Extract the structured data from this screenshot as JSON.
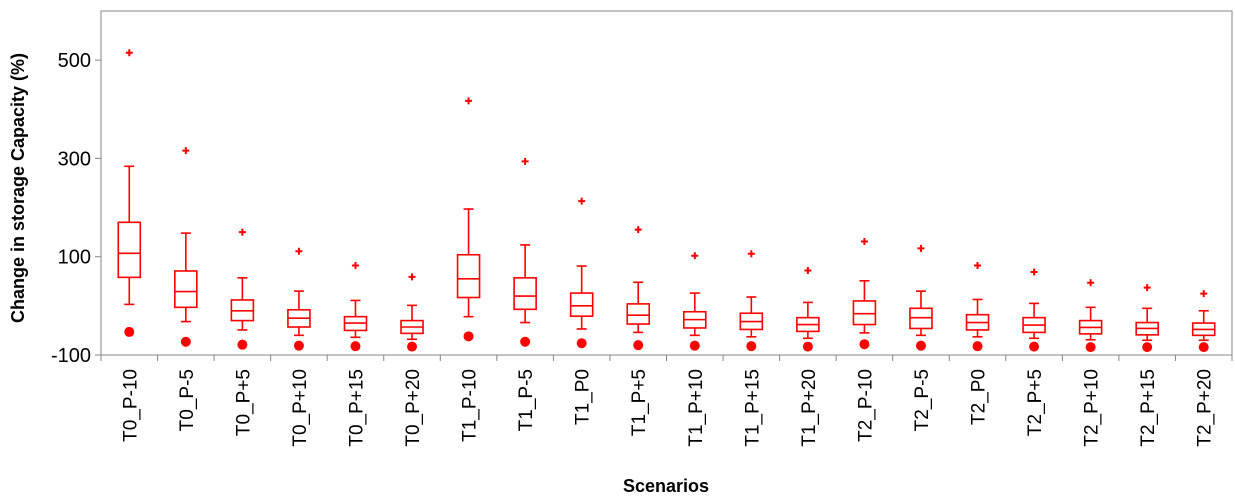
{
  "chart_data": {
    "type": "boxplot",
    "title": "",
    "xlabel": "Scenarios",
    "ylabel": "Change in storage Capacity (%)",
    "ylim": [
      -100,
      600
    ],
    "yticks": [
      -100,
      100,
      300,
      500
    ],
    "grid": false,
    "legend": "none",
    "color": "#ff0000",
    "categories": [
      "T0_P-10",
      "T0_P-5",
      "T0_P+5",
      "T0_P+10",
      "T0_P+15",
      "T0_P+20",
      "T1_P-10",
      "T1_P-5",
      "T1_P0",
      "T1_P+5",
      "T1_P+10",
      "T1_P+15",
      "T1_P+20",
      "T2_P-10",
      "T2_P-5",
      "T2_P0",
      "T2_P+5",
      "T2_P+10",
      "T2_P+15",
      "T2_P+20"
    ],
    "boxes": [
      {
        "whisker_low": 3,
        "q1": 58,
        "median": 107,
        "q3": 170,
        "whisker_high": 284,
        "max_outlier": 515,
        "min_marker": -53
      },
      {
        "whisker_low": -32,
        "q1": -3,
        "median": 29,
        "q3": 71,
        "whisker_high": 148,
        "max_outlier": 316,
        "min_marker": -73
      },
      {
        "whisker_low": -49,
        "q1": -30,
        "median": -10,
        "q3": 12,
        "whisker_high": 57,
        "max_outlier": 150,
        "min_marker": -79
      },
      {
        "whisker_low": -60,
        "q1": -43,
        "median": -25,
        "q3": -8,
        "whisker_high": 30,
        "max_outlier": 111,
        "min_marker": -81
      },
      {
        "whisker_low": -64,
        "q1": -50,
        "median": -35,
        "q3": -22,
        "whisker_high": 11,
        "max_outlier": 82,
        "min_marker": -82
      },
      {
        "whisker_low": -68,
        "q1": -56,
        "median": -43,
        "q3": -30,
        "whisker_high": 1,
        "max_outlier": 59,
        "min_marker": -83
      },
      {
        "whisker_low": -22,
        "q1": 17,
        "median": 55,
        "q3": 104,
        "whisker_high": 197,
        "max_outlier": 417,
        "min_marker": -62
      },
      {
        "whisker_low": -34,
        "q1": -7,
        "median": 20,
        "q3": 57,
        "whisker_high": 124,
        "max_outlier": 294,
        "min_marker": -73
      },
      {
        "whisker_low": -47,
        "q1": -21,
        "median": 0,
        "q3": 26,
        "whisker_high": 81,
        "max_outlier": 213,
        "min_marker": -76
      },
      {
        "whisker_low": -54,
        "q1": -37,
        "median": -19,
        "q3": 4,
        "whisker_high": 48,
        "max_outlier": 155,
        "min_marker": -80
      },
      {
        "whisker_low": -60,
        "q1": -45,
        "median": -28,
        "q3": -12,
        "whisker_high": 26,
        "max_outlier": 102,
        "min_marker": -81
      },
      {
        "whisker_low": -63,
        "q1": -48,
        "median": -32,
        "q3": -15,
        "whisker_high": 18,
        "max_outlier": 106,
        "min_marker": -82
      },
      {
        "whisker_low": -66,
        "q1": -52,
        "median": -38,
        "q3": -24,
        "whisker_high": 7,
        "max_outlier": 72,
        "min_marker": -83
      },
      {
        "whisker_low": -55,
        "q1": -38,
        "median": -16,
        "q3": 10,
        "whisker_high": 51,
        "max_outlier": 131,
        "min_marker": -78
      },
      {
        "whisker_low": -60,
        "q1": -46,
        "median": -24,
        "q3": -5,
        "whisker_high": 30,
        "max_outlier": 117,
        "min_marker": -81
      },
      {
        "whisker_low": -63,
        "q1": -49,
        "median": -34,
        "q3": -18,
        "whisker_high": 13,
        "max_outlier": 82,
        "min_marker": -82
      },
      {
        "whisker_low": -66,
        "q1": -54,
        "median": -39,
        "q3": -24,
        "whisker_high": 5,
        "max_outlier": 69,
        "min_marker": -83
      },
      {
        "whisker_low": -69,
        "q1": -57,
        "median": -44,
        "q3": -30,
        "whisker_high": -3,
        "max_outlier": 47,
        "min_marker": -84
      },
      {
        "whisker_low": -70,
        "q1": -59,
        "median": -46,
        "q3": -34,
        "whisker_high": -5,
        "max_outlier": 37,
        "min_marker": -84
      },
      {
        "whisker_low": -70,
        "q1": -60,
        "median": -48,
        "q3": -35,
        "whisker_high": -10,
        "max_outlier": 25,
        "min_marker": -84
      }
    ]
  }
}
